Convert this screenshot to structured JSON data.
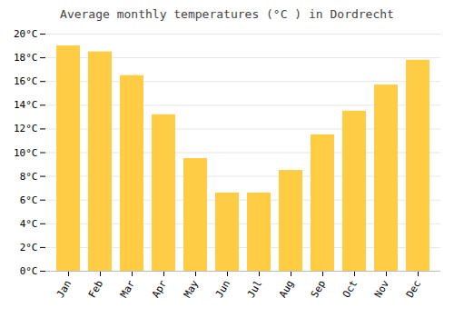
{
  "chart_data": {
    "type": "bar",
    "title": "Average monthly temperatures (°C ) in Dordrecht",
    "categories": [
      "Jan",
      "Feb",
      "Mar",
      "Apr",
      "May",
      "Jun",
      "Jul",
      "Aug",
      "Sep",
      "Oct",
      "Nov",
      "Dec"
    ],
    "values": [
      19.0,
      18.5,
      16.5,
      13.2,
      9.5,
      6.6,
      6.6,
      8.5,
      11.5,
      13.5,
      15.7,
      17.8
    ],
    "color": "#FFCC44",
    "ylim": [
      0,
      20
    ],
    "yticks": [
      {
        "value": 0,
        "label": "0°C"
      },
      {
        "value": 2,
        "label": "2°C"
      },
      {
        "value": 4,
        "label": "4°C"
      },
      {
        "value": 6,
        "label": "6°C"
      },
      {
        "value": 8,
        "label": "8°C"
      },
      {
        "value": 10,
        "label": "10°C"
      },
      {
        "value": 12,
        "label": "12°C"
      },
      {
        "value": 14,
        "label": "14°C"
      },
      {
        "value": 16,
        "label": "16°C"
      },
      {
        "value": 18,
        "label": "18°C"
      },
      {
        "value": 20,
        "label": "20°C"
      }
    ],
    "grid": true
  }
}
